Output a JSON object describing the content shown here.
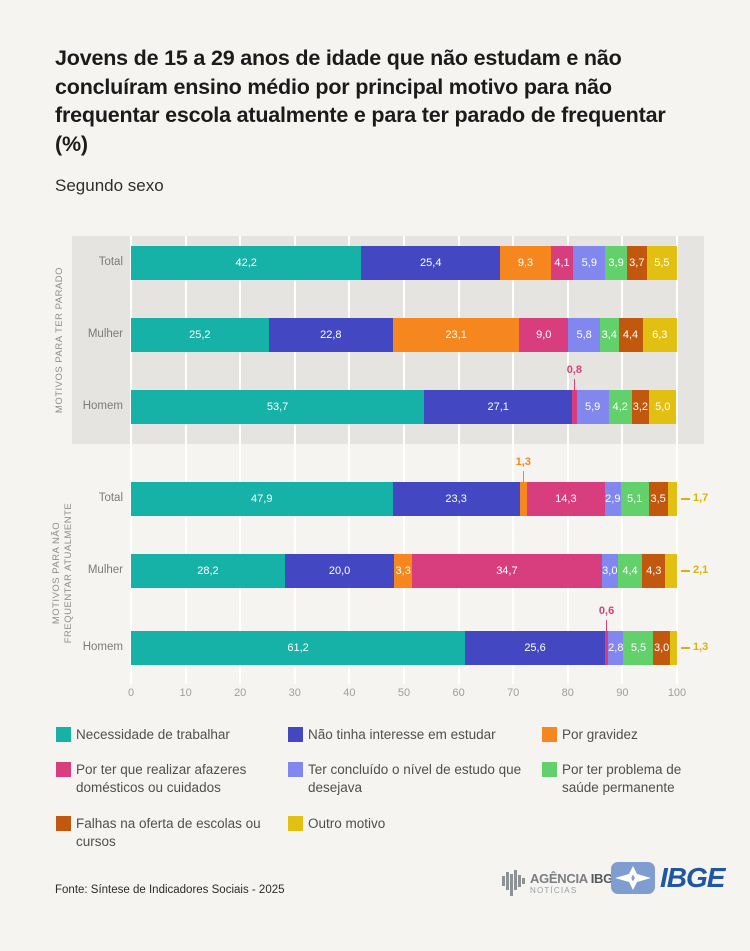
{
  "header": {
    "title": "Jovens de 15 a 29 anos de idade que não estudam e não concluíram ensino médio por principal motivo para não frequentar escola atualmente e para ter parado de frequentar (%)",
    "subtitle": "Segundo sexo"
  },
  "chart_data": {
    "type": "bar",
    "variant": "horizontal-stacked",
    "unit": "%",
    "axis": {
      "min": 0,
      "max": 100,
      "step": 10
    },
    "series": [
      {
        "name": "Necessidade de trabalhar",
        "color": "#16b2a8"
      },
      {
        "name": "Não tinha interesse em estudar",
        "color": "#4348c2"
      },
      {
        "name": "Por gravidez",
        "color": "#f6871f"
      },
      {
        "name": "Por ter que realizar afazeres domésticos ou cuidados",
        "color": "#d83d7d"
      },
      {
        "name": "Ter concluído o nível de estudo que desejava",
        "color": "#8187ee"
      },
      {
        "name": "Por ter problema de saúde permanente",
        "color": "#62d06b"
      },
      {
        "name": "Falhas na oferta de escolas ou cursos",
        "color": "#c2570e"
      },
      {
        "name": "Outro motivo",
        "color": "#e2c011"
      }
    ],
    "groups": [
      {
        "label_lines": [
          "MOTIVOS PARA TER PARADO"
        ],
        "band": true,
        "rows": [
          {
            "label": "Total",
            "segments": [
              {
                "s": 0,
                "v": 42.2,
                "t": "42,2",
                "p": "in"
              },
              {
                "s": 1,
                "v": 25.4,
                "t": "25,4",
                "p": "in"
              },
              {
                "s": 2,
                "v": 9.3,
                "t": "9,3",
                "p": "in"
              },
              {
                "s": 3,
                "v": 4.1,
                "t": "4,1",
                "p": "in"
              },
              {
                "s": 4,
                "v": 5.9,
                "t": "5,9",
                "p": "in"
              },
              {
                "s": 5,
                "v": 3.9,
                "t": "3,9",
                "p": "in"
              },
              {
                "s": 6,
                "v": 3.7,
                "t": "3,7",
                "p": "in"
              },
              {
                "s": 7,
                "v": 5.5,
                "t": "5,5",
                "p": "in"
              }
            ]
          },
          {
            "label": "Mulher",
            "segments": [
              {
                "s": 0,
                "v": 25.2,
                "t": "25,2",
                "p": "in"
              },
              {
                "s": 1,
                "v": 22.8,
                "t": "22,8",
                "p": "in"
              },
              {
                "s": 2,
                "v": 23.1,
                "t": "23,1",
                "p": "in"
              },
              {
                "s": 3,
                "v": 9.0,
                "t": "9,0",
                "p": "in"
              },
              {
                "s": 4,
                "v": 5.8,
                "t": "5,8",
                "p": "in"
              },
              {
                "s": 5,
                "v": 3.4,
                "t": "3,4",
                "p": "in"
              },
              {
                "s": 6,
                "v": 4.4,
                "t": "4,4",
                "p": "in"
              },
              {
                "s": 7,
                "v": 6.3,
                "t": "6,3",
                "p": "in"
              }
            ]
          },
          {
            "label": "Homem",
            "segments": [
              {
                "s": 0,
                "v": 53.7,
                "t": "53,7",
                "p": "in"
              },
              {
                "s": 1,
                "v": 27.1,
                "t": "27,1",
                "p": "in"
              },
              {
                "s": 3,
                "v": 0.8,
                "t": "0,8",
                "p": "up"
              },
              {
                "s": 4,
                "v": 5.9,
                "t": "5,9",
                "p": "in"
              },
              {
                "s": 5,
                "v": 4.2,
                "t": "4,2",
                "p": "in"
              },
              {
                "s": 6,
                "v": 3.2,
                "t": "3,2",
                "p": "in"
              },
              {
                "s": 7,
                "v": 5.0,
                "t": "5,0",
                "p": "in"
              }
            ]
          }
        ]
      },
      {
        "label_lines": [
          "MOTIVOS PARA NÃO",
          "FREQUENTAR ATUALMENTE"
        ],
        "band": false,
        "rows": [
          {
            "label": "Total",
            "segments": [
              {
                "s": 0,
                "v": 47.9,
                "t": "47,9",
                "p": "in"
              },
              {
                "s": 1,
                "v": 23.3,
                "t": "23,3",
                "p": "in"
              },
              {
                "s": 2,
                "v": 1.3,
                "t": "1,3",
                "p": "up"
              },
              {
                "s": 3,
                "v": 14.3,
                "t": "14,3",
                "p": "in"
              },
              {
                "s": 4,
                "v": 2.9,
                "t": "2,9",
                "p": "in"
              },
              {
                "s": 5,
                "v": 5.1,
                "t": "5,1",
                "p": "in"
              },
              {
                "s": 6,
                "v": 3.5,
                "t": "3,5",
                "p": "in"
              },
              {
                "s": 7,
                "v": 1.7,
                "t": "1,7",
                "p": "right"
              }
            ]
          },
          {
            "label": "Mulher",
            "segments": [
              {
                "s": 0,
                "v": 28.2,
                "t": "28,2",
                "p": "in"
              },
              {
                "s": 1,
                "v": 20.0,
                "t": "20,0",
                "p": "in"
              },
              {
                "s": 2,
                "v": 3.3,
                "t": "3,3",
                "p": "in"
              },
              {
                "s": 3,
                "v": 34.7,
                "t": "34,7",
                "p": "in"
              },
              {
                "s": 4,
                "v": 3.0,
                "t": "3,0",
                "p": "in"
              },
              {
                "s": 5,
                "v": 4.4,
                "t": "4,4",
                "p": "in"
              },
              {
                "s": 6,
                "v": 4.3,
                "t": "4,3",
                "p": "in"
              },
              {
                "s": 7,
                "v": 2.1,
                "t": "2,1",
                "p": "right"
              }
            ]
          },
          {
            "label": "Homem",
            "segments": [
              {
                "s": 0,
                "v": 61.2,
                "t": "61,2",
                "p": "in"
              },
              {
                "s": 1,
                "v": 25.6,
                "t": "25,6",
                "p": "in"
              },
              {
                "s": 3,
                "v": 0.6,
                "t": "0,6",
                "p": "up"
              },
              {
                "s": 4,
                "v": 2.8,
                "t": "2,8",
                "p": "in"
              },
              {
                "s": 5,
                "v": 5.5,
                "t": "5,5",
                "p": "in"
              },
              {
                "s": 6,
                "v": 3.0,
                "t": "3,0",
                "p": "in"
              },
              {
                "s": 7,
                "v": 1.3,
                "t": "1,3",
                "p": "right"
              }
            ]
          }
        ]
      }
    ],
    "colors": {
      "background": "#f5f4f1",
      "band": "#e6e4e1",
      "gridline": "#ffffff",
      "callout_yellow_text": "#d9b30c"
    }
  },
  "footer": {
    "source": "Fonte: Síntese de Indicadores Sociais - 2025",
    "agencia_logo": {
      "line1a": "AGÊNCIA",
      "line1b": "IBGE",
      "line2": "NOTÍCIAS"
    },
    "ibge_logo_text": "IBGE"
  }
}
